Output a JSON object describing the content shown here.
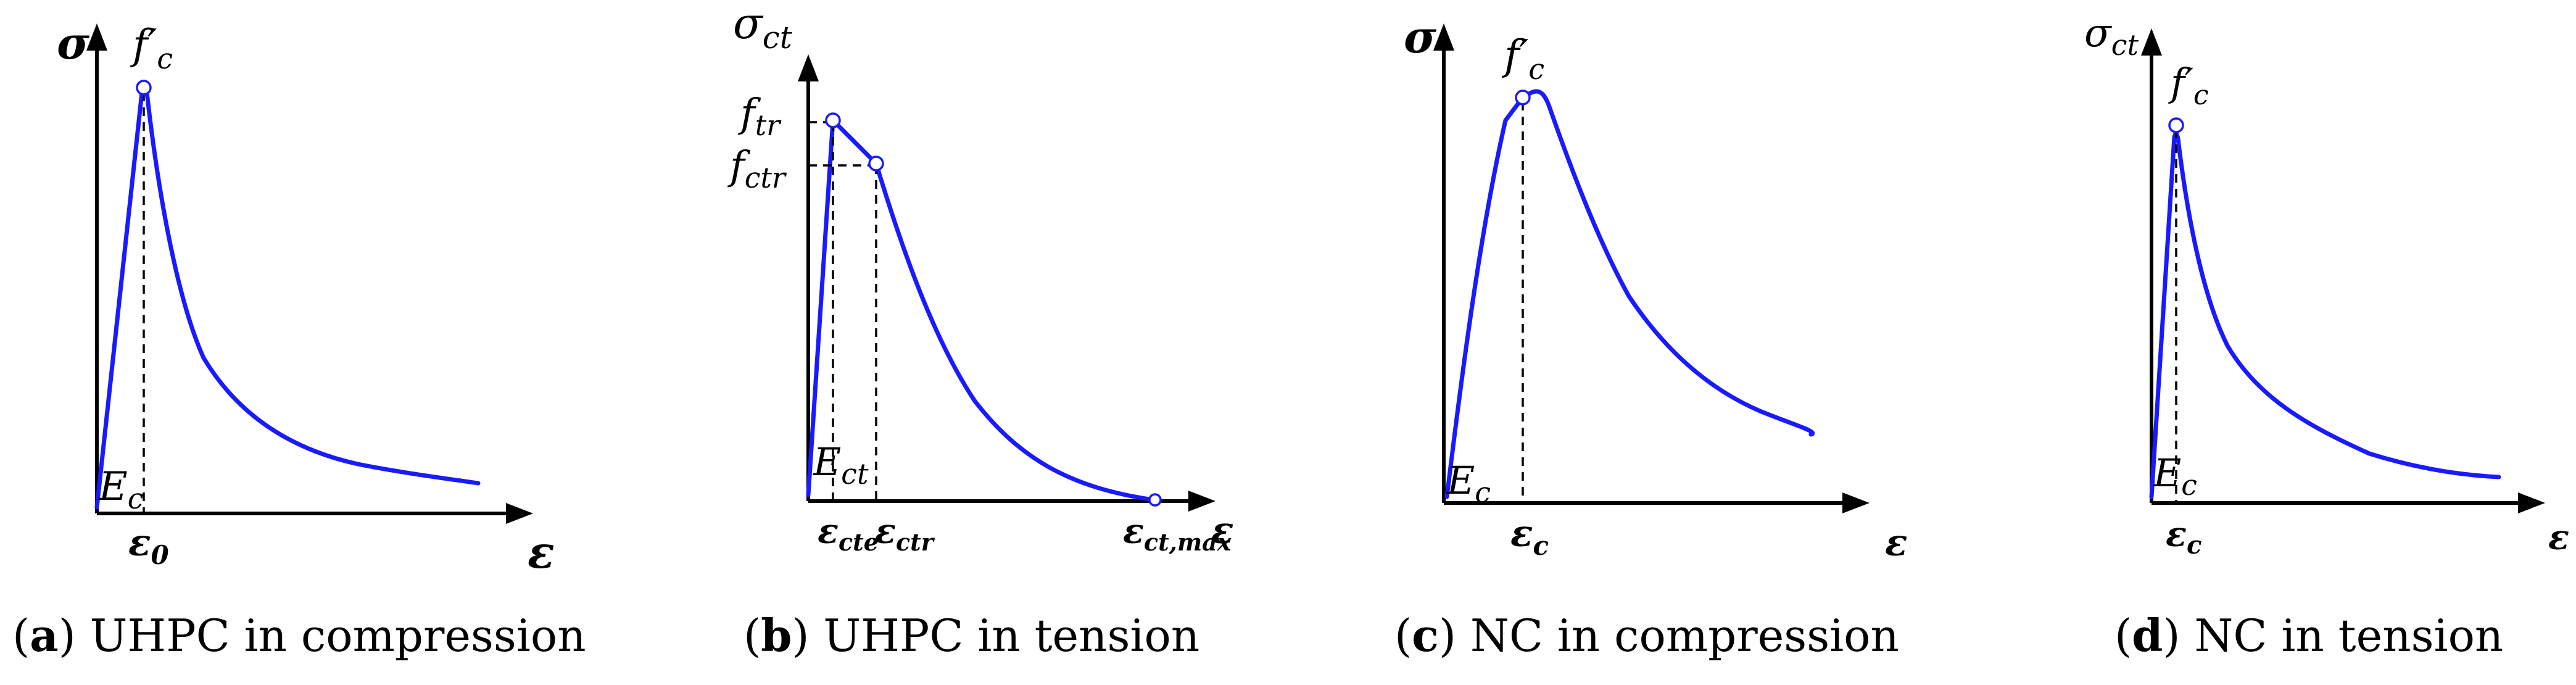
{
  "panels": [
    {
      "id": "a",
      "caption_letter": "a",
      "caption_text": "UHPC in compression",
      "y_axis_label": "σ",
      "x_axis_label": "ε",
      "peak_label": "f′",
      "peak_label_sub": "c",
      "modulus_label": "E",
      "modulus_sub": "c",
      "strain_label": "ε",
      "strain_sub": "0"
    },
    {
      "id": "b",
      "caption_letter": "b",
      "caption_text": "UHPC in tension",
      "y_axis_label": "σ",
      "y_axis_sub": "ct",
      "x_axis_label": "ε",
      "stress1_label": "f",
      "stress1_sub": "tr",
      "stress2_label": "f",
      "stress2_sub": "ctr",
      "modulus_label": "E",
      "modulus_sub": "ct",
      "strain1_label": "ε",
      "strain1_sub": "cte",
      "strain2_label": "ε",
      "strain2_sub": "ctr",
      "strain3_label": "ε",
      "strain3_sub": "ct,max"
    },
    {
      "id": "c",
      "caption_letter": "c",
      "caption_text": "NC in compression",
      "y_axis_label": "σ",
      "x_axis_label": "ε",
      "peak_label": "f′",
      "peak_label_sub": "c",
      "modulus_label": "E",
      "modulus_sub": "c",
      "strain_label": "ε",
      "strain_sub": "c"
    },
    {
      "id": "d",
      "caption_letter": "d",
      "caption_text": "NC in tension",
      "y_axis_label": "σ",
      "y_axis_sub": "ct",
      "x_axis_label": "ε",
      "peak_label": "f′",
      "peak_label_sub": "c",
      "modulus_label": "E",
      "modulus_sub": "c",
      "strain_label": "ε",
      "strain_sub": "c"
    }
  ],
  "colors": {
    "curve": "#1a1aff",
    "axis": "#000000"
  }
}
